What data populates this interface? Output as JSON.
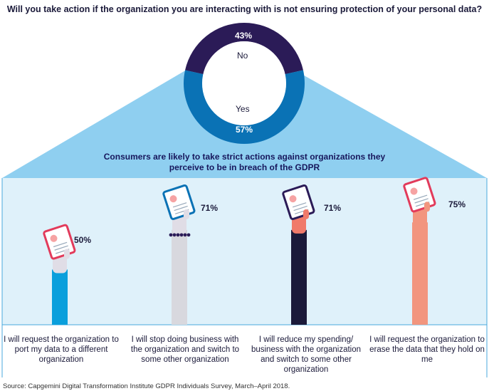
{
  "question": "Will you take action if the organization you are interacting with is not ensuring  protection of your personal data?",
  "headline": "Consumers are likely to take strict actions against organizations they perceive to be in breach of the GDPR",
  "source": "Source: Capgemini Digital Transformation Institute GDPR Individuals Survey, March–April 2018.",
  "colors": {
    "no": "#2b1b57",
    "yes": "#0a72b5",
    "triangle": "#8fcff0",
    "panel": "#dff1fa",
    "separator": "#4aa9dc"
  },
  "chart_data": [
    {
      "type": "pie",
      "style": "donut",
      "series": [
        {
          "name": "No",
          "value": 43,
          "label": "43%"
        },
        {
          "name": "Yes",
          "value": 57,
          "label": "57%"
        }
      ]
    },
    {
      "type": "bar",
      "style": "pictogram (raised arms holding cards)",
      "categories": [
        "I will request the organization to port my  data to a different organization",
        "I will stop doing business with the organization and switch to some other organization",
        "I will reduce my spending/ business with the organization and switch to some other organization",
        "I will request the organization to erase the data that they hold on me"
      ],
      "values": [
        50,
        71,
        71,
        75
      ],
      "labels": [
        "50%",
        "71%",
        "71%",
        "75%"
      ]
    }
  ]
}
